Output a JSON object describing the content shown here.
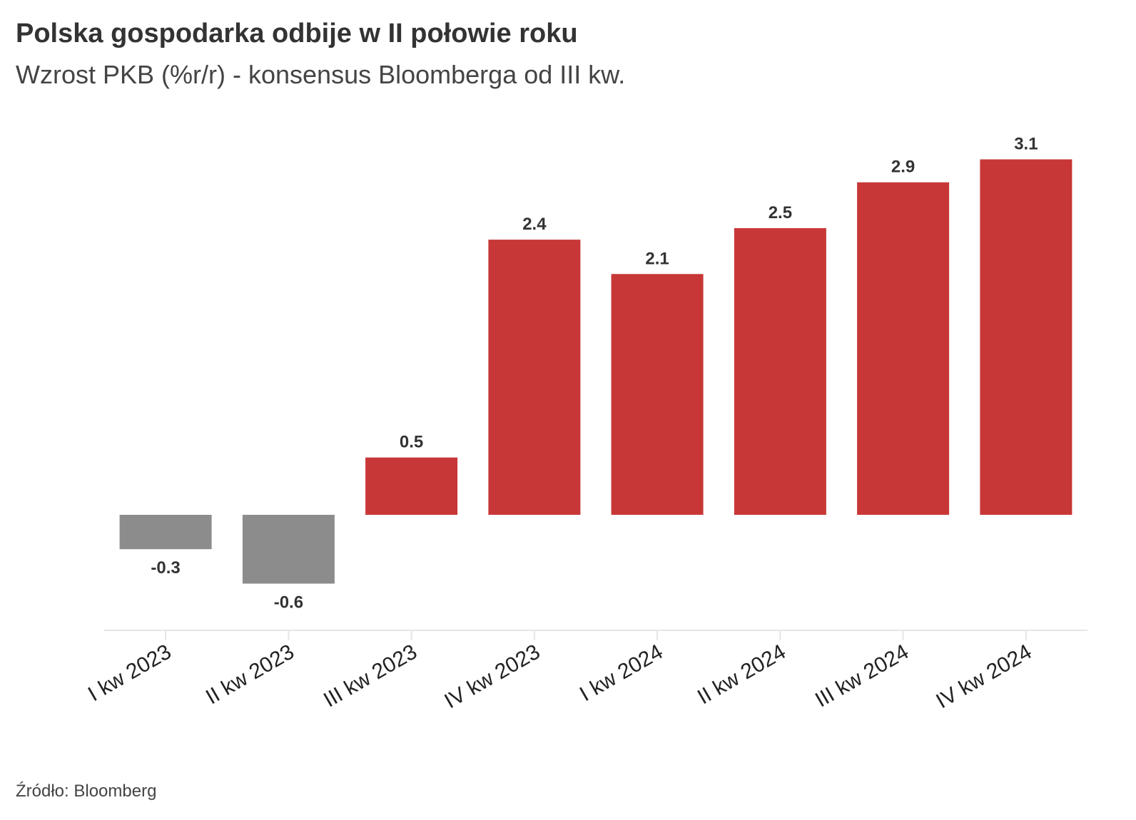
{
  "header": {
    "title": "Polska gospodarka odbije w II połowie roku",
    "subtitle": "Wzrost PKB (%r/r) - konsensus Bloomberga od III kw."
  },
  "footer": {
    "source": "Źródło: Bloomberg"
  },
  "colors": {
    "actual": "#8c8c8c",
    "forecast": "#c83737",
    "axis": "#e6e6e6"
  },
  "chart_data": {
    "type": "bar",
    "title": "Polska gospodarka odbije w II połowie roku",
    "subtitle": "Wzrost PKB (%r/r) - konsensus Bloomberga od III kw.",
    "xlabel": "",
    "ylabel": "",
    "categories": [
      "I kw 2023",
      "II kw 2023",
      "III kw 2023",
      "IV kw 2023",
      "I kw 2024",
      "II kw 2024",
      "III kw 2024",
      "IV kw 2024"
    ],
    "values": [
      -0.3,
      -0.6,
      0.5,
      2.4,
      2.1,
      2.5,
      2.9,
      3.1
    ],
    "value_labels": [
      "-0.3",
      "-0.6",
      "0.5",
      "2.4",
      "2.1",
      "2.5",
      "2.9",
      "3.1"
    ],
    "bar_colors": [
      "#8c8c8c",
      "#8c8c8c",
      "#c83737",
      "#c83737",
      "#c83737",
      "#c83737",
      "#c83737",
      "#c83737"
    ],
    "ylim": [
      -1.0,
      3.3
    ],
    "grid": false,
    "legend": "none"
  }
}
